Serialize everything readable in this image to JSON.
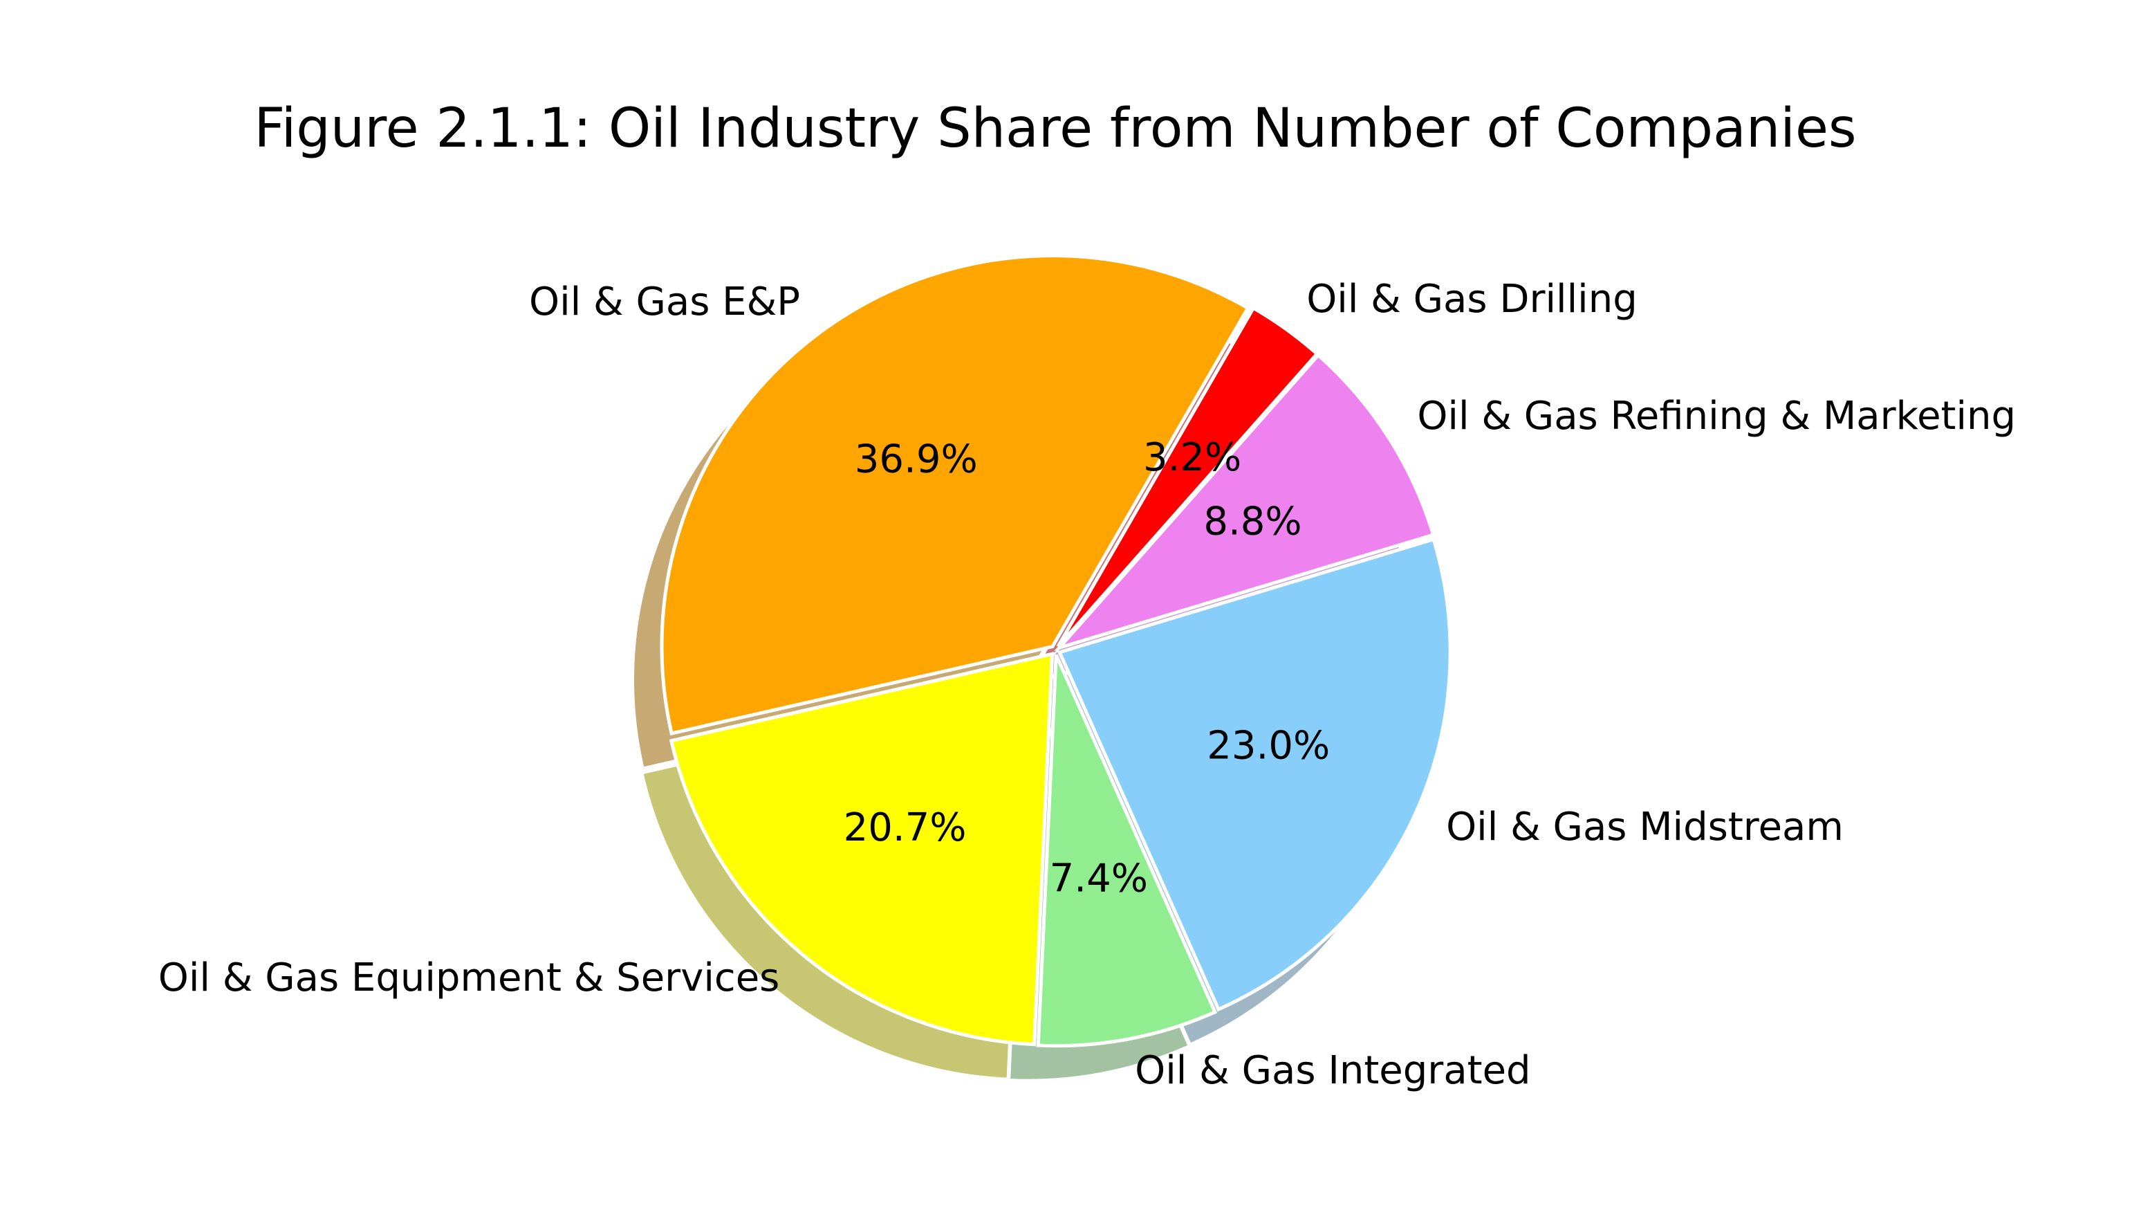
{
  "chart_data": {
    "type": "pie",
    "title": "Figure 2.1.1: Oil Industry Share from Number of Companies",
    "shadow": true,
    "start_angle_deg": 60,
    "direction": "counterclockwise",
    "slices": [
      {
        "label": "Oil & Gas E&P",
        "value": 36.9,
        "pct_label": "36.9%",
        "color": "#FFA500"
      },
      {
        "label": "Oil & Gas Equipment & Services",
        "value": 20.7,
        "pct_label": "20.7%",
        "color": "#FFFF00"
      },
      {
        "label": "Oil & Gas Integrated",
        "value": 7.4,
        "pct_label": "7.4%",
        "color": "#90EE90"
      },
      {
        "label": "Oil & Gas Midstream",
        "value": 23.0,
        "pct_label": "23.0%",
        "color": "#87CEFA"
      },
      {
        "label": "Oil & Gas Refining & Marketing",
        "value": 8.8,
        "pct_label": "8.8%",
        "color": "#EE82EE"
      },
      {
        "label": "Oil & Gas Drilling",
        "value": 3.2,
        "pct_label": "3.2%",
        "color": "#FF0000"
      }
    ]
  }
}
